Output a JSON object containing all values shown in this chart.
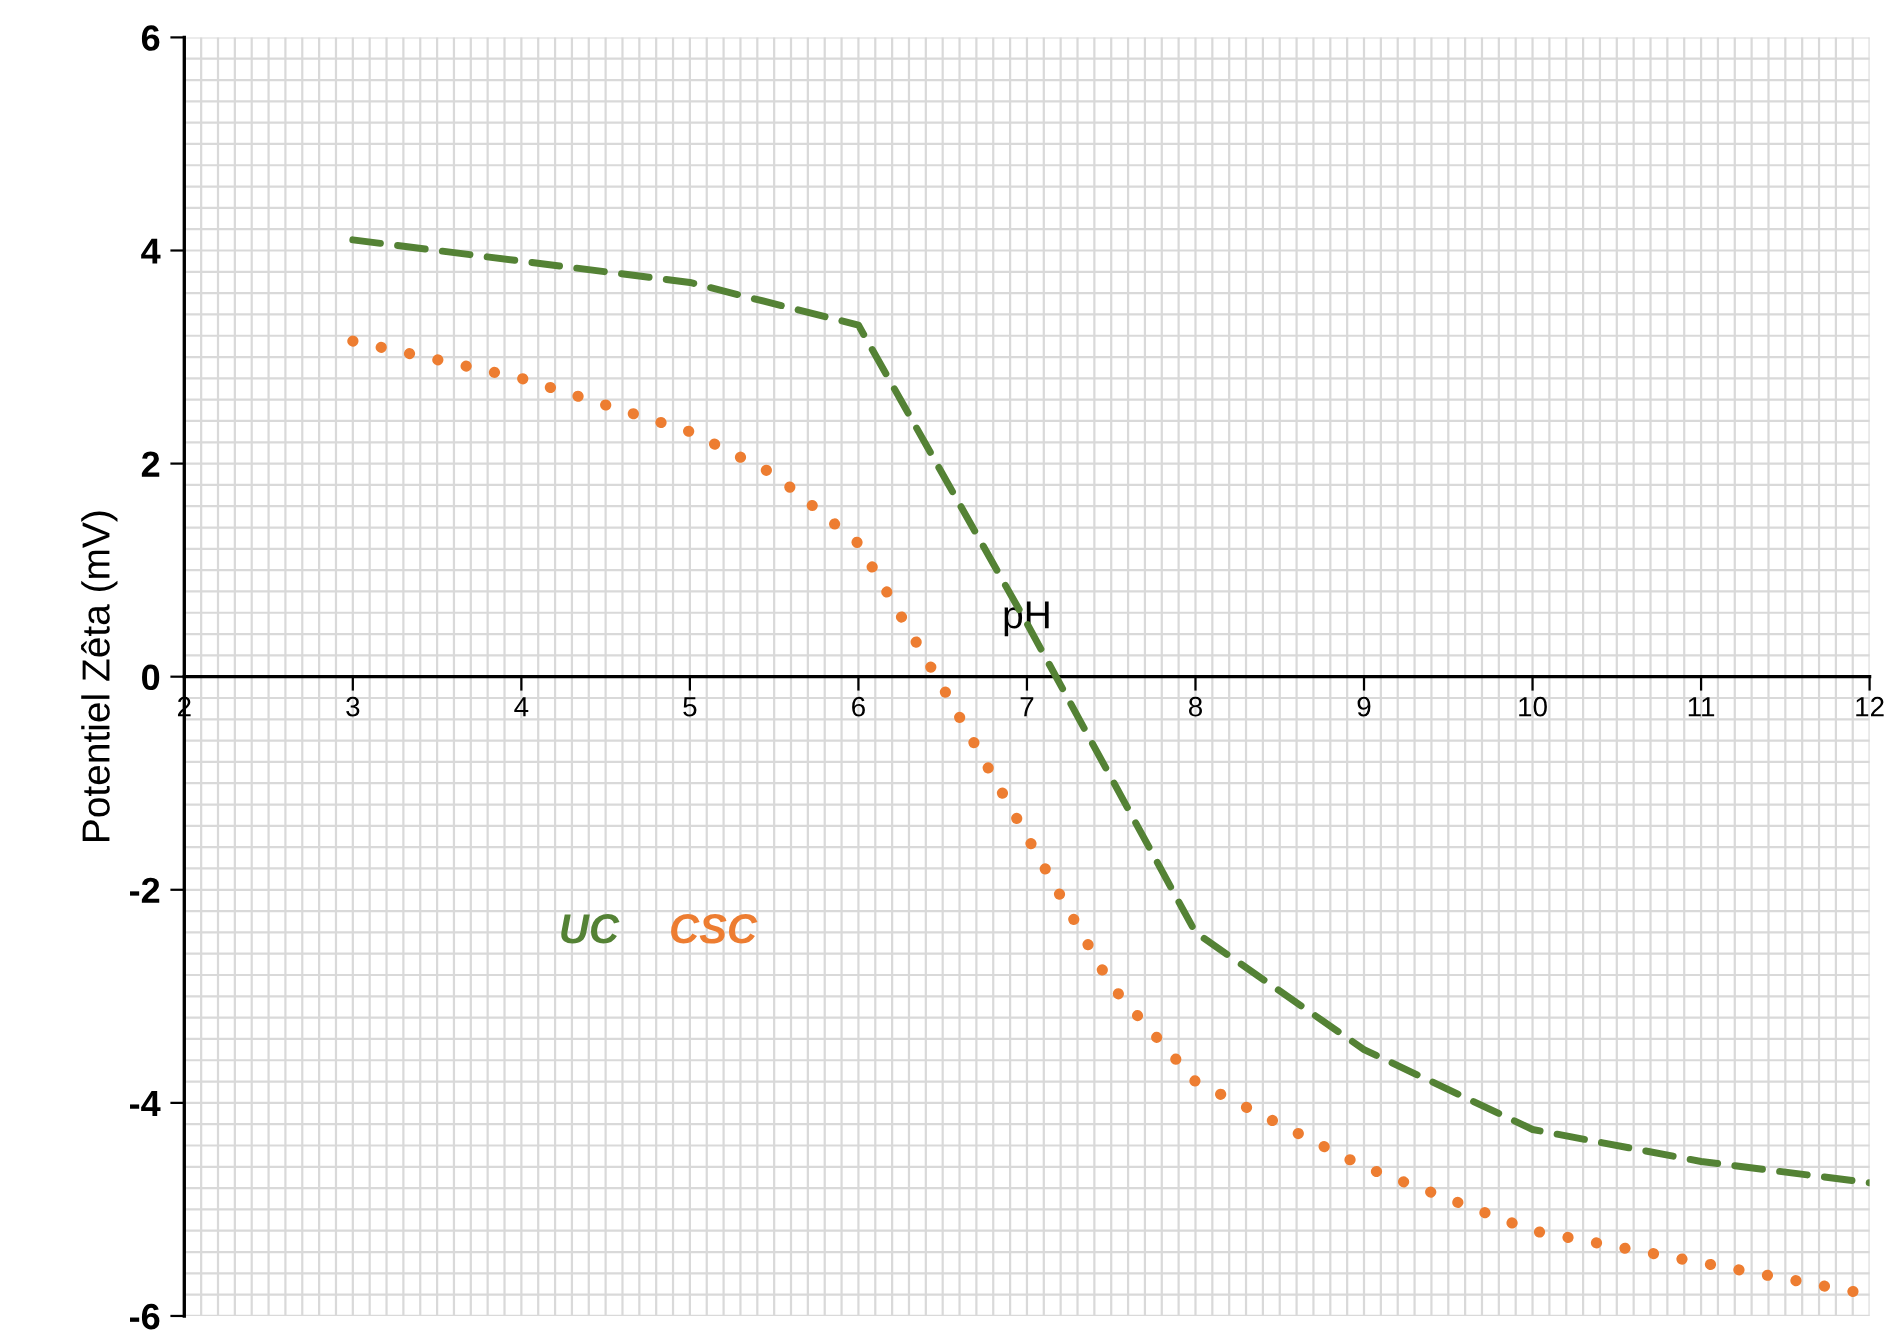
{
  "chart_data": {
    "type": "line",
    "xlabel": "pH",
    "ylabel": "Potentiel Zêta (mV)",
    "xlim": [
      2,
      12
    ],
    "xticks": [
      2,
      3,
      4,
      5,
      6,
      7,
      8,
      9,
      10,
      11,
      12
    ],
    "ylim": [
      -6,
      6
    ],
    "yticks": [
      -6,
      -4,
      -2,
      0,
      2,
      4,
      6
    ],
    "grid": true,
    "legend": "left",
    "marker": "none",
    "series": [
      {
        "name": "UC",
        "color": "#548235",
        "line_style": "dashed",
        "x": [
          3,
          4,
          5,
          6,
          7,
          8,
          9,
          10,
          11,
          12
        ],
        "values": [
          4.1,
          3.9,
          3.7,
          3.3,
          0.5,
          -2.4,
          -3.5,
          -4.25,
          -4.55,
          -4.75
        ]
      },
      {
        "name": "CSC",
        "color": "#ed7d31",
        "line_style": "dotted",
        "x": [
          3,
          4,
          5,
          5.5,
          6,
          6.5,
          7,
          7.5,
          8,
          9,
          10,
          11,
          12
        ],
        "values": [
          3.15,
          2.8,
          2.3,
          1.9,
          1.25,
          -0.1,
          -1.5,
          -2.9,
          -3.8,
          -4.6,
          -5.2,
          -5.5,
          -5.8
        ]
      }
    ]
  }
}
